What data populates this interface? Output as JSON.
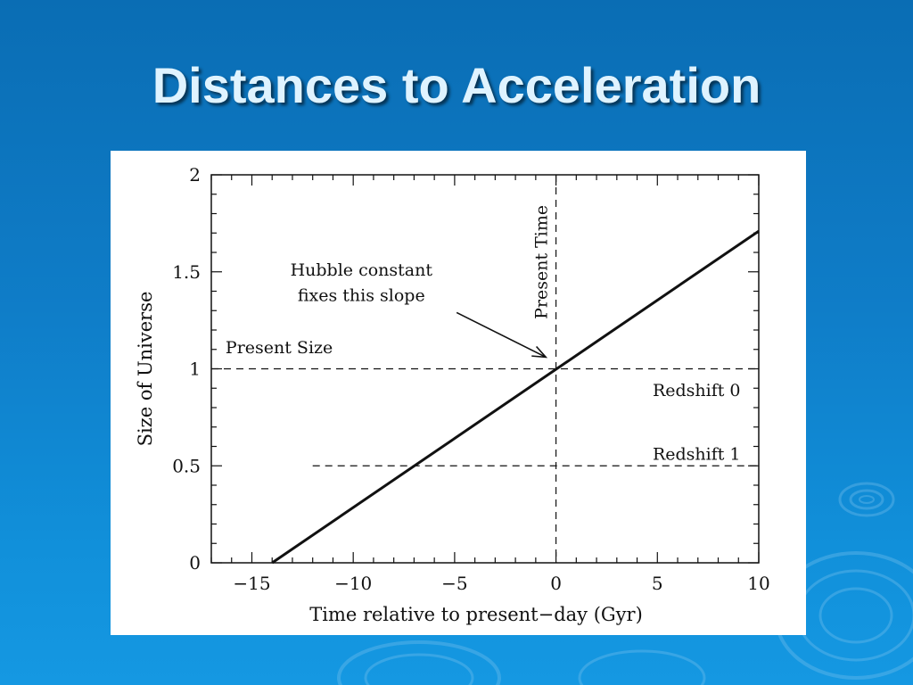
{
  "slide": {
    "title": "Distances to Acceleration"
  },
  "colors": {
    "background": "#0f7dc8",
    "title": "#dff3ff",
    "panel": "#ffffff",
    "ink": "#111111"
  },
  "chart_data": {
    "type": "line",
    "xlabel": "Time relative to present−day (Gyr)",
    "ylabel": "Size of Universe",
    "xlim": [
      -17,
      10
    ],
    "ylim": [
      0,
      2
    ],
    "x_ticks": [
      {
        "value": -15,
        "label": "−15"
      },
      {
        "value": -10,
        "label": "−10"
      },
      {
        "value": -5,
        "label": "−5"
      },
      {
        "value": 0,
        "label": "0"
      },
      {
        "value": 5,
        "label": "5"
      },
      {
        "value": 10,
        "label": "10"
      }
    ],
    "y_ticks": [
      {
        "value": 0,
        "label": "0"
      },
      {
        "value": 0.5,
        "label": "0.5"
      },
      {
        "value": 1,
        "label": "1"
      },
      {
        "value": 1.5,
        "label": "1.5"
      },
      {
        "value": 2,
        "label": "2"
      }
    ],
    "series": [
      {
        "style": "solid",
        "x": [
          -14,
          10
        ],
        "y": [
          0,
          1.71
        ]
      }
    ],
    "reference_lines": [
      {
        "kind": "horizontal",
        "y": 1,
        "x_from": -17,
        "x_to": 10,
        "style": "dashed"
      },
      {
        "kind": "horizontal",
        "y": 0.5,
        "x_from": -12,
        "x_to": 10,
        "style": "dashed"
      },
      {
        "kind": "vertical",
        "x": 0,
        "style": "dashed"
      }
    ],
    "annotations": {
      "present_size": {
        "text": "Present Size",
        "x": -16.3,
        "y": 1.08
      },
      "present_time": {
        "text": "Present Time",
        "x": -0.45,
        "y": 1.55
      },
      "redshift_0": {
        "text": "Redshift 0",
        "x": 9.1,
        "y": 0.86
      },
      "redshift_1": {
        "text": "Redshift 1",
        "x": 9.1,
        "y": 0.53
      },
      "hubble_line1": {
        "text": "Hubble constant",
        "x": -9.6,
        "y": 1.48
      },
      "hubble_line2": {
        "text": "fixes this slope",
        "x": -9.6,
        "y": 1.35
      },
      "hubble_arrow": {
        "from": [
          -4.9,
          1.29
        ],
        "to": [
          -0.5,
          1.06
        ]
      }
    },
    "grid": false
  }
}
